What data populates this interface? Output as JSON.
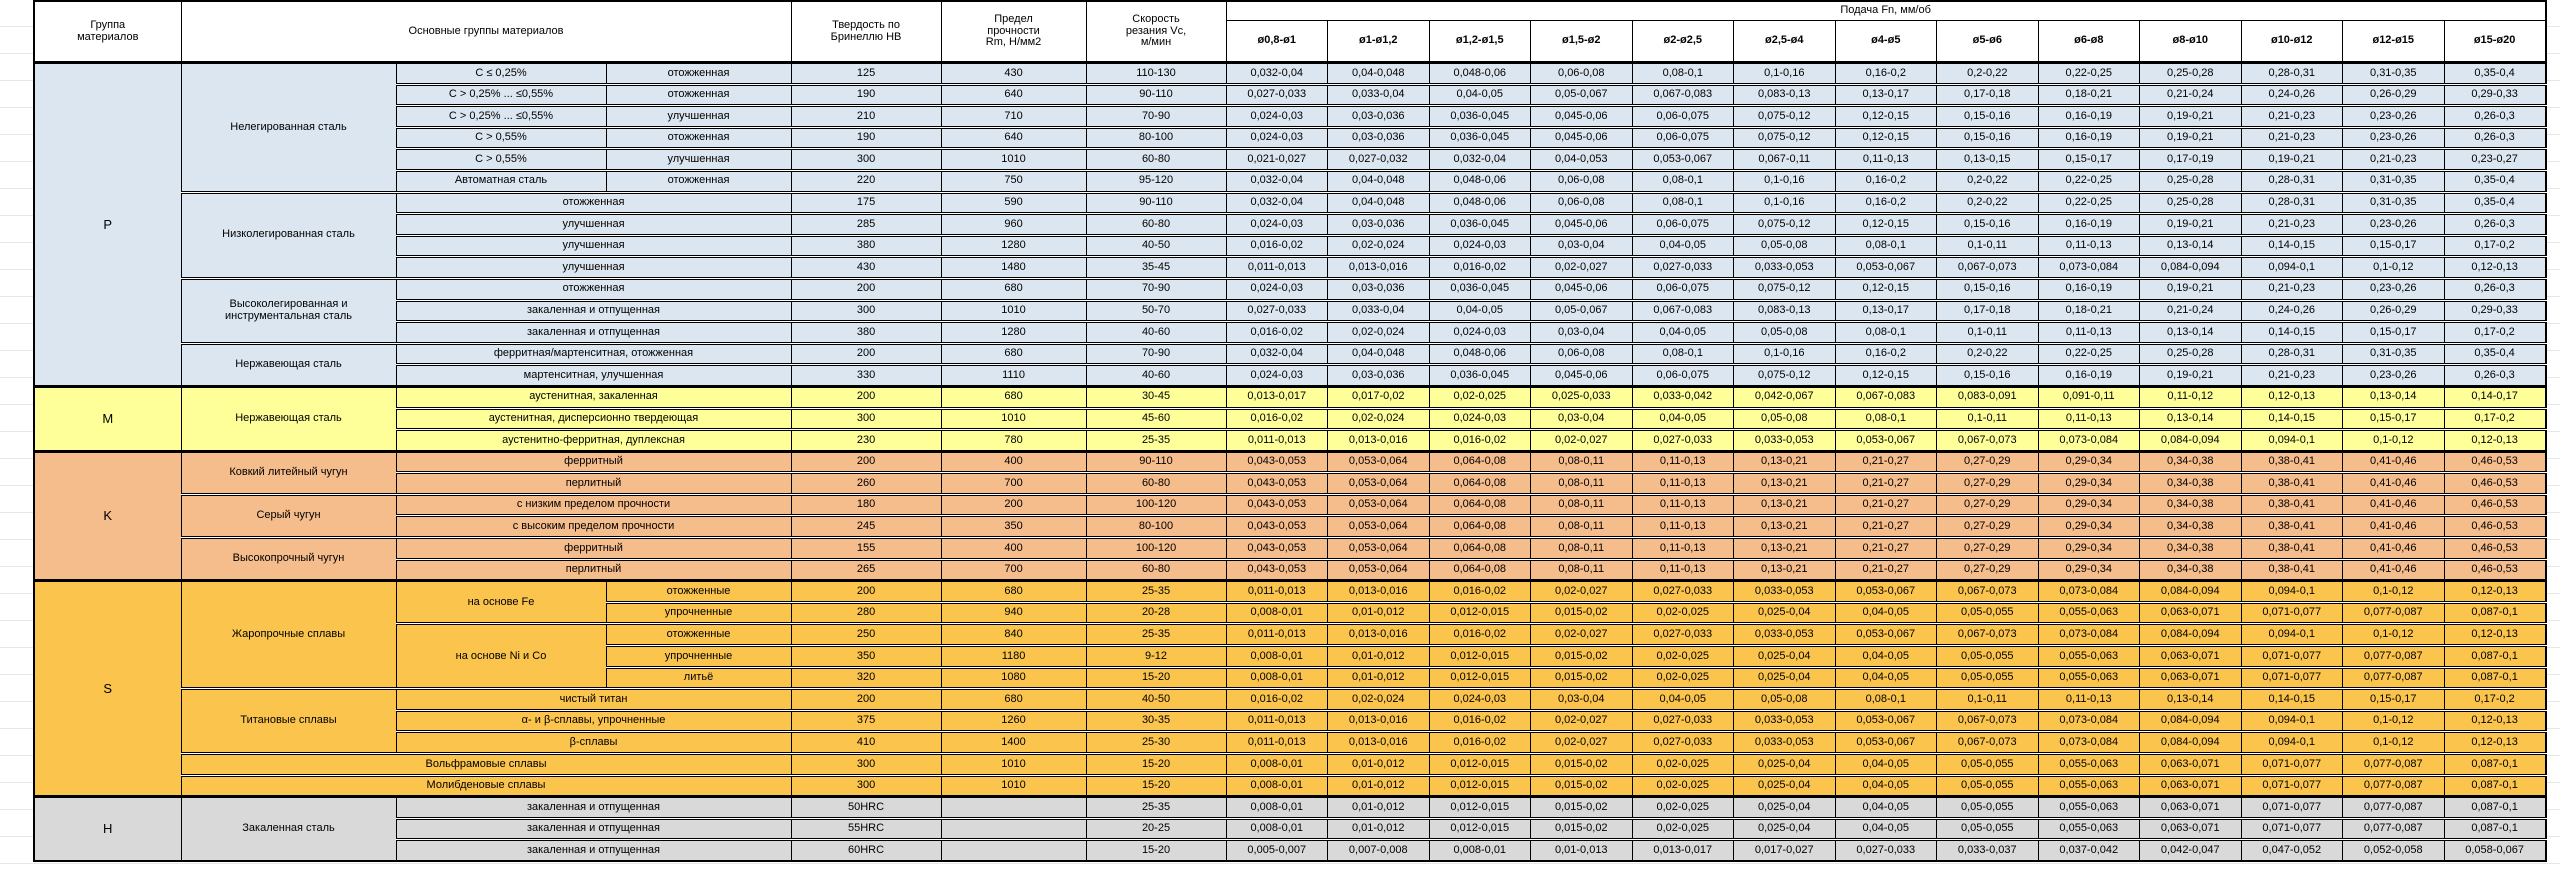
{
  "header": {
    "group": "Группа\nматериалов",
    "main": "Основные группы материалов",
    "hb": "Твердость по\nБринеллю HB",
    "rm": "Предел\nпрочности\nRm, Н/мм2",
    "vc": "Скорость\nрезания Vc,\nм/мин",
    "feed": "Подача Fn, мм/об",
    "diams": [
      "ø0,8-ø1",
      "ø1-ø1,2",
      "ø1,2-ø1,5",
      "ø1,5-ø2",
      "ø2-ø2,5",
      "ø2,5-ø4",
      "ø4-ø5",
      "ø5-ø6",
      "ø6-ø8",
      "ø8-ø10",
      "ø10-ø12",
      "ø12-ø15",
      "ø15-ø20"
    ]
  },
  "feed_patterns": {
    "A": [
      "0,032-0,04",
      "0,04-0,048",
      "0,048-0,06",
      "0,06-0,08",
      "0,08-0,1",
      "0,1-0,16",
      "0,16-0,2",
      "0,2-0,22",
      "0,22-0,25",
      "0,25-0,28",
      "0,28-0,31",
      "0,31-0,35",
      "0,35-0,4"
    ],
    "B": [
      "0,027-0,033",
      "0,033-0,04",
      "0,04-0,05",
      "0,05-0,067",
      "0,067-0,083",
      "0,083-0,13",
      "0,13-0,17",
      "0,17-0,18",
      "0,18-0,21",
      "0,21-0,24",
      "0,24-0,26",
      "0,26-0,29",
      "0,29-0,33"
    ],
    "C": [
      "0,024-0,03",
      "0,03-0,036",
      "0,036-0,045",
      "0,045-0,06",
      "0,06-0,075",
      "0,075-0,12",
      "0,12-0,15",
      "0,15-0,16",
      "0,16-0,19",
      "0,19-0,21",
      "0,21-0,23",
      "0,23-0,26",
      "0,26-0,3"
    ],
    "D": [
      "0,021-0,027",
      "0,027-0,032",
      "0,032-0,04",
      "0,04-0,053",
      "0,053-0,067",
      "0,067-0,11",
      "0,11-0,13",
      "0,13-0,15",
      "0,15-0,17",
      "0,17-0,19",
      "0,19-0,21",
      "0,21-0,23",
      "0,23-0,27"
    ],
    "E": [
      "0,016-0,02",
      "0,02-0,024",
      "0,024-0,03",
      "0,03-0,04",
      "0,04-0,05",
      "0,05-0,08",
      "0,08-0,1",
      "0,1-0,11",
      "0,11-0,13",
      "0,13-0,14",
      "0,14-0,15",
      "0,15-0,17",
      "0,17-0,2"
    ],
    "F": [
      "0,011-0,013",
      "0,013-0,016",
      "0,016-0,02",
      "0,02-0,027",
      "0,027-0,033",
      "0,033-0,053",
      "0,053-0,067",
      "0,067-0,073",
      "0,073-0,084",
      "0,084-0,094",
      "0,094-0,1",
      "0,1-0,12",
      "0,12-0,13"
    ],
    "G": [
      "0,013-0,017",
      "0,017-0,02",
      "0,02-0,025",
      "0,025-0,033",
      "0,033-0,042",
      "0,042-0,067",
      "0,067-0,083",
      "0,083-0,091",
      "0,091-0,11",
      "0,11-0,12",
      "0,12-0,13",
      "0,13-0,14",
      "0,14-0,17"
    ],
    "K": [
      "0,043-0,053",
      "0,053-0,064",
      "0,064-0,08",
      "0,08-0,11",
      "0,11-0,13",
      "0,13-0,21",
      "0,21-0,27",
      "0,27-0,29",
      "0,29-0,34",
      "0,34-0,38",
      "0,38-0,41",
      "0,41-0,46",
      "0,46-0,53"
    ],
    "S": [
      "0,008-0,01",
      "0,01-0,012",
      "0,012-0,015",
      "0,015-0,02",
      "0,02-0,025",
      "0,025-0,04",
      "0,04-0,05",
      "0,05-0,055",
      "0,055-0,063",
      "0,063-0,071",
      "0,071-0,077",
      "0,077-0,087",
      "0,087-0,1"
    ],
    "H": [
      "0,005-0,007",
      "0,007-0,008",
      "0,008-0,01",
      "0,01-0,013",
      "0,013-0,017",
      "0,017-0,027",
      "0,027-0,033",
      "0,033-0,037",
      "0,037-0,042",
      "0,042-0,047",
      "0,047-0,052",
      "0,052-0,058",
      "0,058-0,067"
    ]
  },
  "groups": [
    {
      "letter": "P",
      "color": "#DCE6F1",
      "rows": [
        {
          "cells": [
            {
              "t": "Нелегированная сталь",
              "rs": 6
            },
            {
              "t": "С ≤ 0,25%"
            },
            {
              "t": "отожженная"
            }
          ],
          "hb": "125",
          "rm": "430",
          "vc": "110-130",
          "feed": "A"
        },
        {
          "cells": [
            {
              "t": "С > 0,25% ... ≤0,55%"
            },
            {
              "t": "отожженная"
            }
          ],
          "hb": "190",
          "rm": "640",
          "vc": "90-110",
          "feed": "B"
        },
        {
          "cells": [
            {
              "t": "С > 0,25% ... ≤0,55%"
            },
            {
              "t": "улучшенная"
            }
          ],
          "hb": "210",
          "rm": "710",
          "vc": "70-90",
          "feed": "C"
        },
        {
          "cells": [
            {
              "t": "С > 0,55%"
            },
            {
              "t": "отожженная"
            }
          ],
          "hb": "190",
          "rm": "640",
          "vc": "80-100",
          "feed": "C"
        },
        {
          "cells": [
            {
              "t": "С > 0,55%"
            },
            {
              "t": "улучшенная"
            }
          ],
          "hb": "300",
          "rm": "1010",
          "vc": "60-80",
          "feed": "D"
        },
        {
          "cells": [
            {
              "t": "Автоматная сталь"
            },
            {
              "t": "отожженная"
            }
          ],
          "hb": "220",
          "rm": "750",
          "vc": "95-120",
          "feed": "A"
        },
        {
          "cells": [
            {
              "t": "Низколегированная сталь",
              "rs": 4
            },
            {
              "t": "отожженная",
              "cs": 2
            }
          ],
          "hb": "175",
          "rm": "590",
          "vc": "90-110",
          "feed": "A"
        },
        {
          "cells": [
            {
              "t": "улучшенная",
              "cs": 2
            }
          ],
          "hb": "285",
          "rm": "960",
          "vc": "60-80",
          "feed": "C"
        },
        {
          "cells": [
            {
              "t": "улучшенная",
              "cs": 2
            }
          ],
          "hb": "380",
          "rm": "1280",
          "vc": "40-50",
          "feed": "E"
        },
        {
          "cells": [
            {
              "t": "улучшенная",
              "cs": 2
            }
          ],
          "hb": "430",
          "rm": "1480",
          "vc": "35-45",
          "feed": "F"
        },
        {
          "cells": [
            {
              "t": "Высоколегированная и инструментальная сталь",
              "rs": 3
            },
            {
              "t": "отожженная",
              "cs": 2
            }
          ],
          "hb": "200",
          "rm": "680",
          "vc": "70-90",
          "feed": "C"
        },
        {
          "cells": [
            {
              "t": "закаленная и отпущенная",
              "cs": 2
            }
          ],
          "hb": "300",
          "rm": "1010",
          "vc": "50-70",
          "feed": "B"
        },
        {
          "cells": [
            {
              "t": "закаленная и отпущенная",
              "cs": 2
            }
          ],
          "hb": "380",
          "rm": "1280",
          "vc": "40-60",
          "feed": "E"
        },
        {
          "cells": [
            {
              "t": "Нержавеющая сталь",
              "rs": 2
            },
            {
              "t": "ферритная/мартенситная, отожженная",
              "cs": 2
            }
          ],
          "hb": "200",
          "rm": "680",
          "vc": "70-90",
          "feed": "A"
        },
        {
          "cells": [
            {
              "t": "мартенситная, улучшенная",
              "cs": 2
            }
          ],
          "hb": "330",
          "rm": "1110",
          "vc": "40-60",
          "feed": "C"
        }
      ]
    },
    {
      "letter": "M",
      "color": "#FFFF99",
      "rows": [
        {
          "cells": [
            {
              "t": "Нержавеющая сталь",
              "rs": 3
            },
            {
              "t": "аустенитная, закаленная",
              "cs": 2
            }
          ],
          "hb": "200",
          "rm": "680",
          "vc": "30-45",
          "feed": "G"
        },
        {
          "cells": [
            {
              "t": "аустенитная, дисперсионно твердеющая",
              "cs": 2
            }
          ],
          "hb": "300",
          "rm": "1010",
          "vc": "45-60",
          "feed": "E"
        },
        {
          "cells": [
            {
              "t": "аустенитно-ферритная, дуплексная",
              "cs": 2
            }
          ],
          "hb": "230",
          "rm": "780",
          "vc": "25-35",
          "feed": "F"
        }
      ]
    },
    {
      "letter": "K",
      "color": "#F5BC8C",
      "rows": [
        {
          "cells": [
            {
              "t": "Ковкий литейный чугун",
              "rs": 2
            },
            {
              "t": "ферритный",
              "cs": 2
            }
          ],
          "hb": "200",
          "rm": "400",
          "vc": "90-110",
          "feed": "K"
        },
        {
          "cells": [
            {
              "t": "перлитный",
              "cs": 2
            }
          ],
          "hb": "260",
          "rm": "700",
          "vc": "60-80",
          "feed": "K"
        },
        {
          "cells": [
            {
              "t": "Серый чугун",
              "rs": 2
            },
            {
              "t": "с низким пределом прочности",
              "cs": 2
            }
          ],
          "hb": "180",
          "rm": "200",
          "vc": "100-120",
          "feed": "K"
        },
        {
          "cells": [
            {
              "t": "с высоким пределом прочности",
              "cs": 2
            }
          ],
          "hb": "245",
          "rm": "350",
          "vc": "80-100",
          "feed": "K"
        },
        {
          "cells": [
            {
              "t": "Высокопрочный чугун",
              "rs": 2
            },
            {
              "t": "ферритный",
              "cs": 2
            }
          ],
          "hb": "155",
          "rm": "400",
          "vc": "100-120",
          "feed": "K"
        },
        {
          "cells": [
            {
              "t": "перлитный",
              "cs": 2
            }
          ],
          "hb": "265",
          "rm": "700",
          "vc": "60-80",
          "feed": "K"
        }
      ]
    },
    {
      "letter": "S",
      "color": "#FBC44D",
      "rows": [
        {
          "cells": [
            {
              "t": "Жаропрочные сплавы",
              "rs": 5
            },
            {
              "t": "на основе Fe",
              "rs": 2
            },
            {
              "t": "отожженные"
            }
          ],
          "hb": "200",
          "rm": "680",
          "vc": "25-35",
          "feed": "F"
        },
        {
          "cells": [
            {
              "t": "упрочненные"
            }
          ],
          "hb": "280",
          "rm": "940",
          "vc": "20-28",
          "feed": "S"
        },
        {
          "cells": [
            {
              "t": "на основе Ni и Co",
              "rs": 3
            },
            {
              "t": "отожженные"
            }
          ],
          "hb": "250",
          "rm": "840",
          "vc": "25-35",
          "feed": "F"
        },
        {
          "cells": [
            {
              "t": "упрочненные"
            }
          ],
          "hb": "350",
          "rm": "1180",
          "vc": "9-12",
          "feed": "S"
        },
        {
          "cells": [
            {
              "t": "литьё"
            }
          ],
          "hb": "320",
          "rm": "1080",
          "vc": "15-20",
          "feed": "S"
        },
        {
          "cells": [
            {
              "t": "Титановые сплавы",
              "rs": 3
            },
            {
              "t": "чистый титан",
              "cs": 2
            }
          ],
          "hb": "200",
          "rm": "680",
          "vc": "40-50",
          "feed": "E"
        },
        {
          "cells": [
            {
              "t": "α- и β-сплавы, упрочненные",
              "cs": 2
            }
          ],
          "hb": "375",
          "rm": "1260",
          "vc": "30-35",
          "feed": "F"
        },
        {
          "cells": [
            {
              "t": "β-сплавы",
              "cs": 2
            }
          ],
          "hb": "410",
          "rm": "1400",
          "vc": "25-30",
          "feed": "F"
        },
        {
          "cells": [
            {
              "t": "Вольфрамовые сплавы",
              "cs": 3
            }
          ],
          "hb": "300",
          "rm": "1010",
          "vc": "15-20",
          "feed": "S"
        },
        {
          "cells": [
            {
              "t": "Молибденовые сплавы",
              "cs": 3
            }
          ],
          "hb": "300",
          "rm": "1010",
          "vc": "15-20",
          "feed": "S"
        }
      ]
    },
    {
      "letter": "H",
      "color": "#D9D9D9",
      "rows": [
        {
          "cells": [
            {
              "t": "Закаленная сталь",
              "rs": 3
            },
            {
              "t": "закаленная и отпущенная",
              "cs": 2
            }
          ],
          "hb": "50HRC",
          "rm": "",
          "vc": "25-35",
          "feed": "S"
        },
        {
          "cells": [
            {
              "t": "закаленная и отпущенная",
              "cs": 2
            }
          ],
          "hb": "55HRC",
          "rm": "",
          "vc": "20-25",
          "feed": "S"
        },
        {
          "cells": [
            {
              "t": "закаленная и отпущенная",
              "cs": 2
            }
          ],
          "hb": "60HRC",
          "rm": "",
          "vc": "15-20",
          "feed": "H"
        }
      ]
    }
  ]
}
